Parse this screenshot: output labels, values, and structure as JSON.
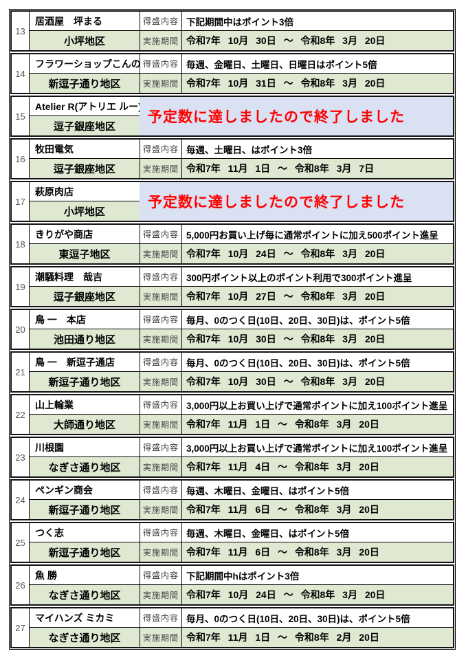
{
  "table": {
    "labels": {
      "content": "得盛内容",
      "period": "実施期間"
    },
    "ended_banner": "予定数に達しましたので終了しました",
    "colors": {
      "row_green": "#dfe9d2",
      "ended_blue": "#d9e1f2",
      "banner_red": "#ff0000",
      "border": "#000000"
    },
    "rows": [
      {
        "num": "13",
        "name": "居酒屋　坪まる",
        "district": "小坪地区",
        "ended": false,
        "content": "下記期間中はポイント3倍",
        "period": "令和7年 10月 30日 ～ 令和8年 3月 20日"
      },
      {
        "num": "14",
        "name": "フラワーショップこんの",
        "district": "新逗子通り地区",
        "ended": false,
        "content": "毎週、金曜日、土曜日、日曜日はポイント5倍",
        "period": "令和7年 10月 31日 ～ 令和8年 3月 20日"
      },
      {
        "num": "15",
        "name": "Atelier R(アトリエ ルー)",
        "district": "逗子銀座地区",
        "ended": true
      },
      {
        "num": "16",
        "name": "牧田電気",
        "district": "逗子銀座地区",
        "ended": false,
        "content": "毎週、土曜日、はポイント3倍",
        "period": "令和7年 11月 1日 ～ 令和8年 3月 7日"
      },
      {
        "num": "17",
        "name": "萩原肉店",
        "district": "小坪地区",
        "ended": true
      },
      {
        "num": "18",
        "name": "きりがや商店",
        "district": "東逗子地区",
        "ended": false,
        "content": "5,000円お買い上げ毎に通常ポイントに加え500ポイント進呈",
        "period": "令和7年 10月 24日 ～ 令和8年 3月 20日"
      },
      {
        "num": "19",
        "name": "潮騒料理　哉吉",
        "district": "逗子銀座地区",
        "ended": false,
        "content": "300円ポイント以上のポイント利用で300ポイント進呈",
        "period": "令和7年 10月 27日 ～ 令和8年 3月 20日"
      },
      {
        "num": "20",
        "name": "鳥 一　本店",
        "district": "池田通り地区",
        "ended": false,
        "content": "毎月、0のつく日(10日、20日、30日)は、ポイント5倍",
        "period": "令和7年 10月 30日 ～ 令和8年 3月 20日"
      },
      {
        "num": "21",
        "name": "鳥 一　新逗子通店",
        "district": "新逗子通り地区",
        "ended": false,
        "content": "毎月、0のつく日(10日、20日、30日)は、ポイント5倍",
        "period": "令和7年 10月 30日 ～ 令和8年 3月 20日"
      },
      {
        "num": "22",
        "name": "山上輪業",
        "district": "大師通り地区",
        "ended": false,
        "content": "3,000円以上お買い上げで通常ポイントに加え100ポイント進呈",
        "period": "令和7年 11月 1日 ～ 令和8年 3月 20日"
      },
      {
        "num": "23",
        "name": "川根園",
        "district": "なぎさ通り地区",
        "ended": false,
        "content": "3,000円以上お買い上げで通常ポイントに加え100ポイント進呈",
        "period": "令和7年 11月 4日 ～ 令和8年 3月 20日"
      },
      {
        "num": "24",
        "name": "ペンギン商会",
        "district": "新逗子通り地区",
        "ended": false,
        "content": "毎週、木曜日、金曜日、はポイント5倍",
        "period": "令和7年 11月 6日 ～ 令和8年 3月 20日"
      },
      {
        "num": "25",
        "name": "つく志",
        "district": "新逗子通り地区",
        "ended": false,
        "content": "毎週、木曜日、金曜日、はポイント5倍",
        "period": "令和7年 11月 6日 ～ 令和8年 3月 20日"
      },
      {
        "num": "26",
        "name": "魚 勝",
        "district": "なぎさ通り地区",
        "ended": false,
        "content": "下記期間中hはポイント3倍",
        "period": "令和7年 10月 24日 ～ 令和8年 3月 20日"
      },
      {
        "num": "27",
        "name": "マイハンズ ミカミ",
        "district": "なぎさ通り地区",
        "ended": false,
        "content": "毎月、0のつく日(10日、20日、30日)は、ポイント5倍",
        "period": "令和7年 11月 1日 ～ 令和8年 2月 20日"
      }
    ]
  }
}
